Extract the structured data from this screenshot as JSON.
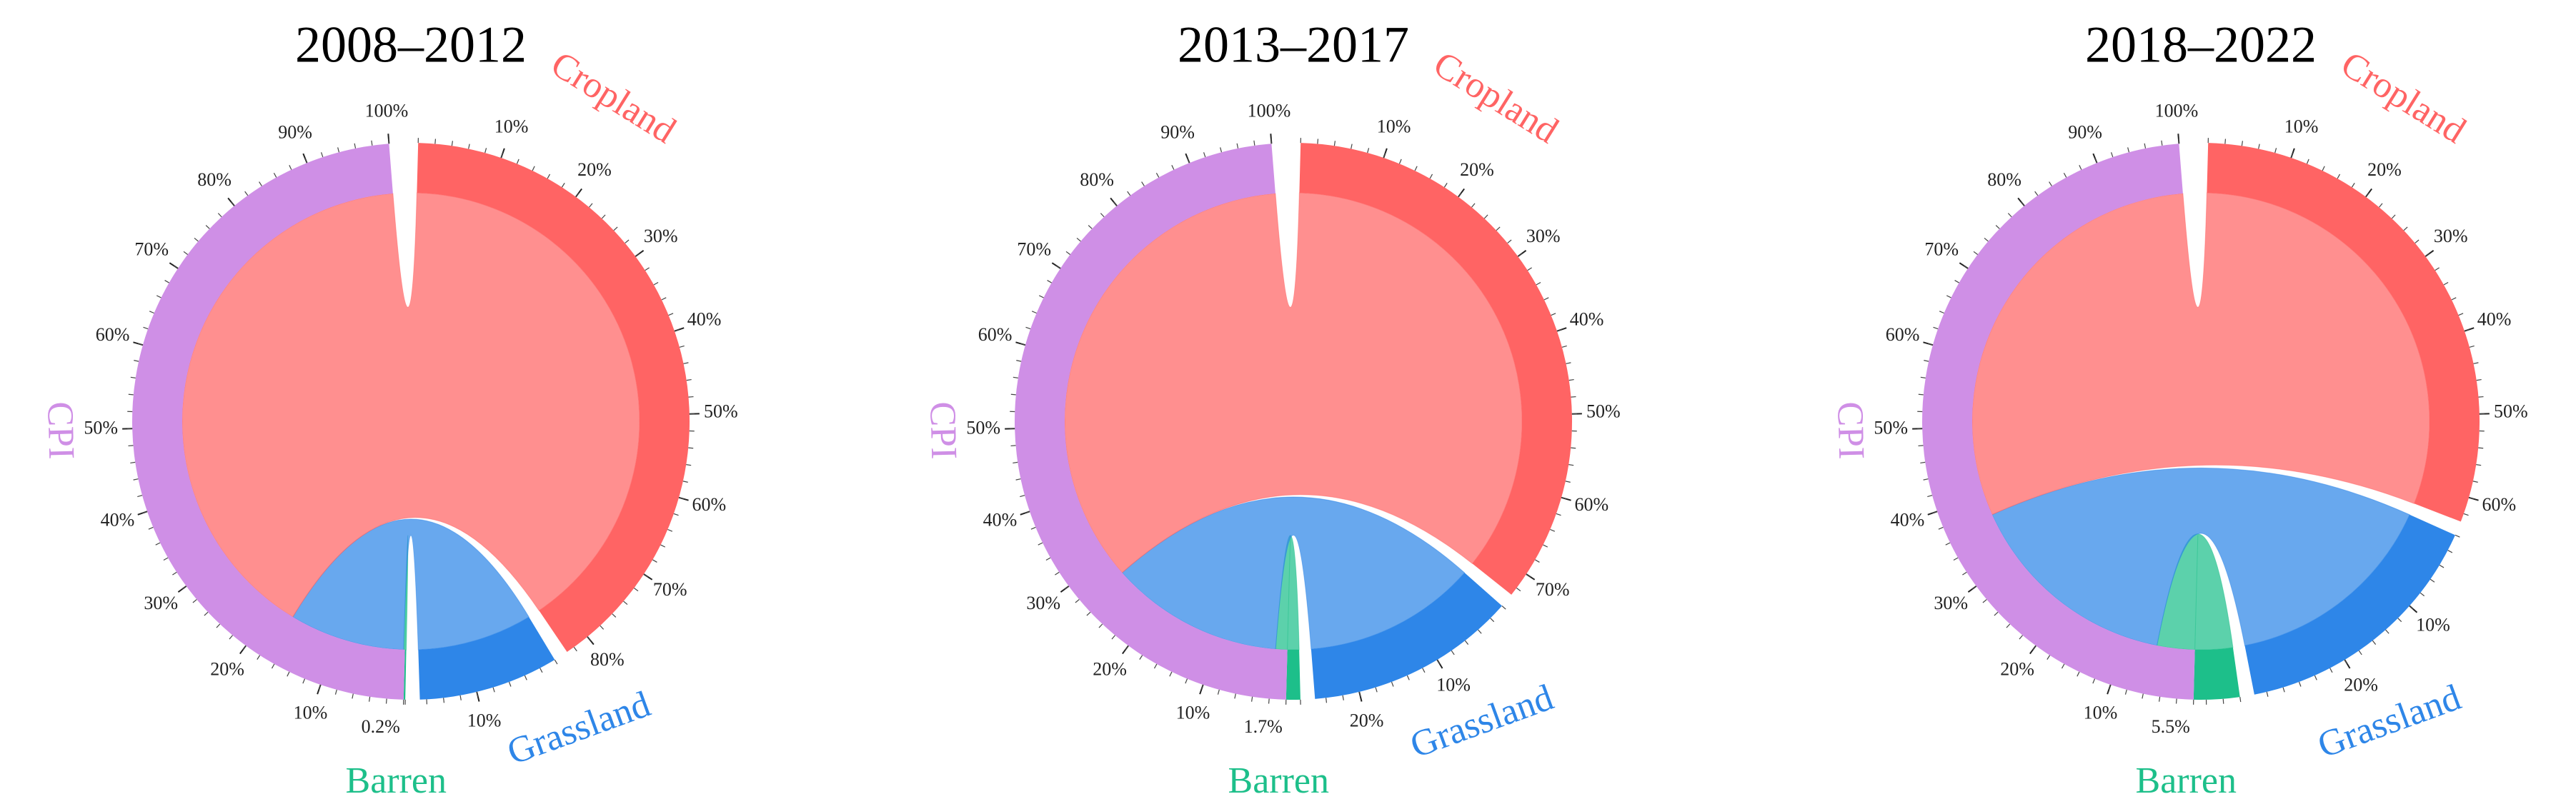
{
  "chart_data": [
    {
      "type": "chord",
      "title": "2008–2012",
      "sectors": [
        {
          "name": "Cropland",
          "color": "#ff6464",
          "value": 83,
          "ticks": [
            {
              "value": 10,
              "label": "10%"
            },
            {
              "value": 20,
              "label": "20%"
            },
            {
              "value": 30,
              "label": "30%"
            },
            {
              "value": 40,
              "label": "40%"
            },
            {
              "value": 50,
              "label": "50%"
            },
            {
              "value": 60,
              "label": "60%"
            },
            {
              "value": 70,
              "label": "70%"
            },
            {
              "value": 80,
              "label": "80%"
            }
          ]
        },
        {
          "name": "Grassland",
          "color": "#2e86e8",
          "value": 16.8,
          "ticks": [
            {
              "value": 10,
              "label": "10%"
            }
          ]
        },
        {
          "name": "Barren",
          "color": "#1dbf8a",
          "value": 0.2,
          "value_label": "0.2%",
          "ticks": []
        },
        {
          "name": "CPI",
          "color": "#cf8fe6",
          "value": 100,
          "ticks": [
            {
              "value": 10,
              "label": "10%"
            },
            {
              "value": 20,
              "label": "20%"
            },
            {
              "value": 30,
              "label": "30%"
            },
            {
              "value": 40,
              "label": "40%"
            },
            {
              "value": 50,
              "label": "50%"
            },
            {
              "value": 60,
              "label": "60%"
            },
            {
              "value": 70,
              "label": "70%"
            },
            {
              "value": 80,
              "label": "80%"
            },
            {
              "value": 90,
              "label": "90%"
            },
            {
              "value": 100,
              "label": "100%"
            }
          ]
        }
      ]
    },
    {
      "type": "chord",
      "title": "2013–2017",
      "sectors": [
        {
          "name": "Cropland",
          "color": "#ff6464",
          "value": 73,
          "ticks": [
            {
              "value": 10,
              "label": "10%"
            },
            {
              "value": 20,
              "label": "20%"
            },
            {
              "value": 30,
              "label": "30%"
            },
            {
              "value": 40,
              "label": "40%"
            },
            {
              "value": 50,
              "label": "50%"
            },
            {
              "value": 60,
              "label": "60%"
            },
            {
              "value": 70,
              "label": "70%"
            }
          ]
        },
        {
          "name": "Grassland",
          "color": "#2e86e8",
          "value": 25.3,
          "ticks": [
            {
              "value": 10,
              "label": "10%"
            },
            {
              "value": 20,
              "label": "20%"
            }
          ]
        },
        {
          "name": "Barren",
          "color": "#1dbf8a",
          "value": 1.7,
          "value_label": "1.7%",
          "ticks": []
        },
        {
          "name": "CPI",
          "color": "#cf8fe6",
          "value": 100,
          "ticks": [
            {
              "value": 10,
              "label": "10%"
            },
            {
              "value": 20,
              "label": "20%"
            },
            {
              "value": 30,
              "label": "30%"
            },
            {
              "value": 40,
              "label": "40%"
            },
            {
              "value": 50,
              "label": "50%"
            },
            {
              "value": 60,
              "label": "60%"
            },
            {
              "value": 70,
              "label": "70%"
            },
            {
              "value": 80,
              "label": "80%"
            },
            {
              "value": 90,
              "label": "90%"
            },
            {
              "value": 100,
              "label": "100%"
            }
          ]
        }
      ]
    },
    {
      "type": "chord",
      "title": "2018–2022",
      "sectors": [
        {
          "name": "Cropland",
          "color": "#ff6464",
          "value": 63,
          "ticks": [
            {
              "value": 10,
              "label": "10%"
            },
            {
              "value": 20,
              "label": "20%"
            },
            {
              "value": 30,
              "label": "30%"
            },
            {
              "value": 40,
              "label": "40%"
            },
            {
              "value": 50,
              "label": "50%"
            },
            {
              "value": 60,
              "label": "60%"
            }
          ]
        },
        {
          "name": "Grassland",
          "color": "#2e86e8",
          "value": 31.5,
          "ticks": [
            {
              "value": 10,
              "label": "10%"
            },
            {
              "value": 20,
              "label": "20%"
            }
          ]
        },
        {
          "name": "Barren",
          "color": "#1dbf8a",
          "value": 5.5,
          "value_label": "5.5%",
          "ticks": []
        },
        {
          "name": "CPI",
          "color": "#cf8fe6",
          "value": 100,
          "ticks": [
            {
              "value": 10,
              "label": "10%"
            },
            {
              "value": 20,
              "label": "20%"
            },
            {
              "value": 30,
              "label": "30%"
            },
            {
              "value": 40,
              "label": "40%"
            },
            {
              "value": 50,
              "label": "50%"
            },
            {
              "value": 60,
              "label": "60%"
            },
            {
              "value": 70,
              "label": "70%"
            },
            {
              "value": 80,
              "label": "80%"
            },
            {
              "value": 90,
              "label": "90%"
            },
            {
              "value": 100,
              "label": "100%"
            }
          ]
        }
      ]
    }
  ]
}
